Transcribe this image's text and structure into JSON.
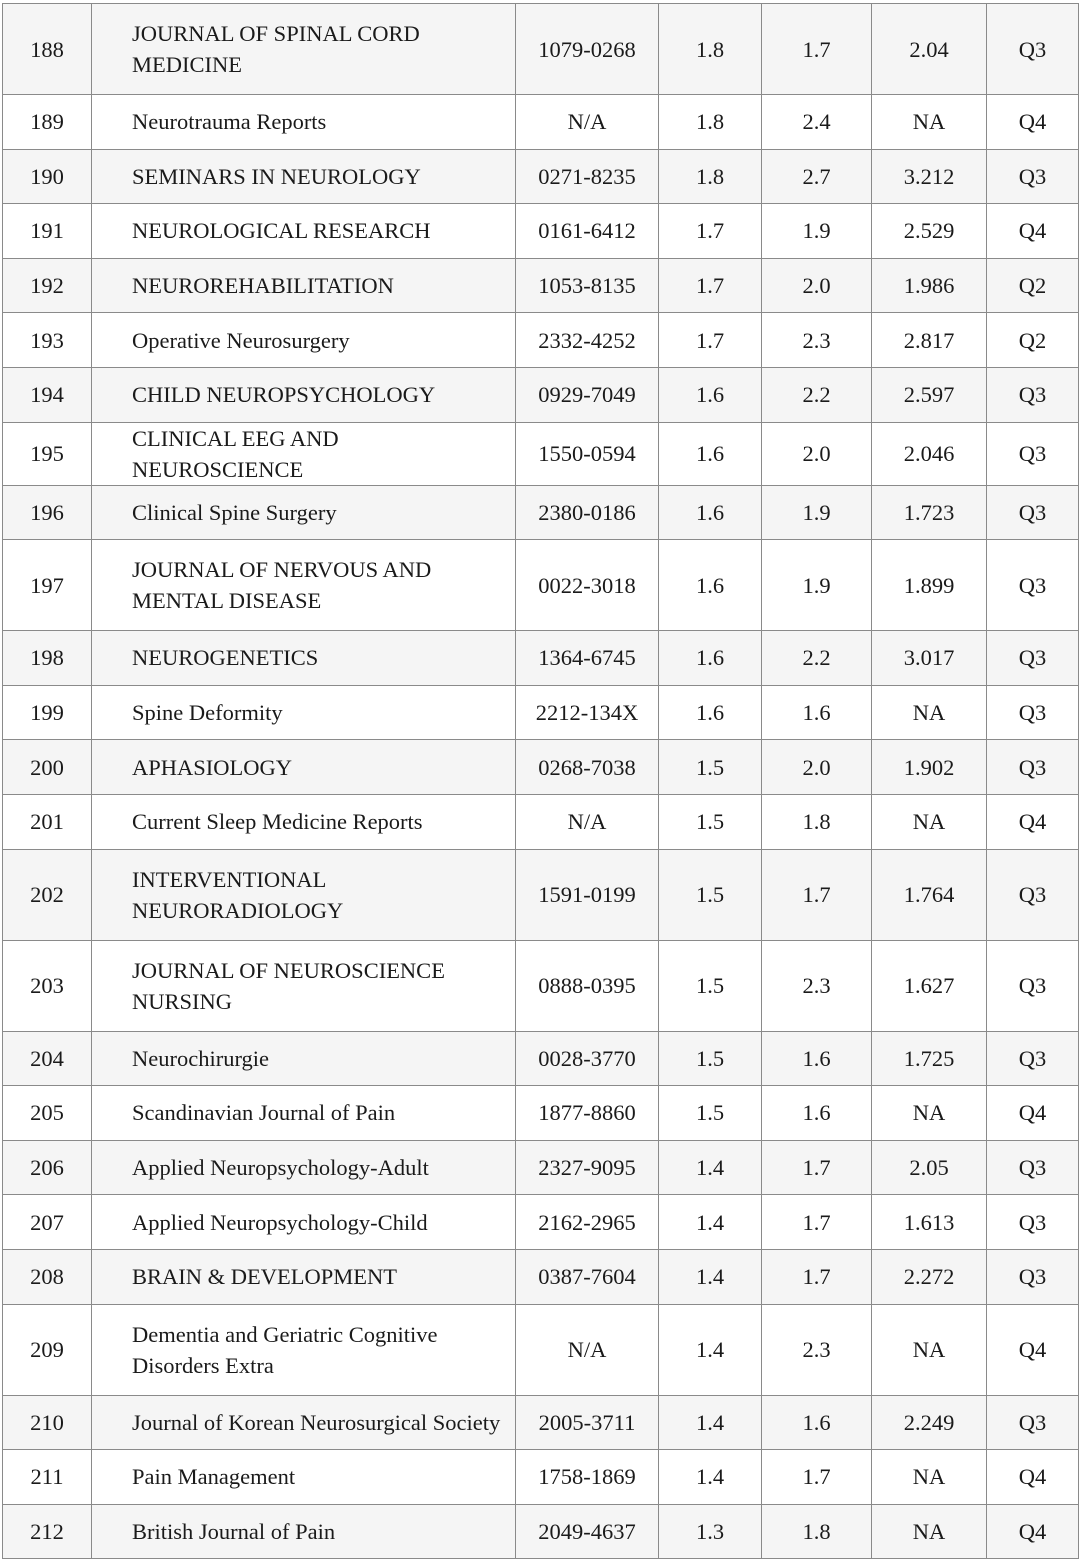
{
  "table": {
    "rows": [
      {
        "rank": "188",
        "journal": "JOURNAL OF SPINAL CORD MEDICINE",
        "issn": "1079-0268",
        "v1": "1.8",
        "v2": "1.7",
        "v3": "2.04",
        "quartile": "Q3",
        "tall": true
      },
      {
        "rank": "189",
        "journal": "Neurotrauma Reports",
        "issn": "N/A",
        "v1": "1.8",
        "v2": "2.4",
        "v3": "NA",
        "quartile": "Q4"
      },
      {
        "rank": "190",
        "journal": "SEMINARS IN NEUROLOGY",
        "issn": "0271-8235",
        "v1": "1.8",
        "v2": "2.7",
        "v3": "3.212",
        "quartile": "Q3"
      },
      {
        "rank": "191",
        "journal": "NEUROLOGICAL RESEARCH",
        "issn": "0161-6412",
        "v1": "1.7",
        "v2": "1.9",
        "v3": "2.529",
        "quartile": "Q4"
      },
      {
        "rank": "192",
        "journal": "NEUROREHABILITATION",
        "issn": "1053-8135",
        "v1": "1.7",
        "v2": "2.0",
        "v3": "1.986",
        "quartile": "Q2"
      },
      {
        "rank": "193",
        "journal": "Operative Neurosurgery",
        "issn": "2332-4252",
        "v1": "1.7",
        "v2": "2.3",
        "v3": "2.817",
        "quartile": "Q2"
      },
      {
        "rank": "194",
        "journal": "CHILD NEUROPSYCHOLOGY",
        "issn": "0929-7049",
        "v1": "1.6",
        "v2": "2.2",
        "v3": "2.597",
        "quartile": "Q3"
      },
      {
        "rank": "195",
        "journal": "CLINICAL EEG AND NEUROSCIENCE",
        "issn": "1550-0594",
        "v1": "1.6",
        "v2": "2.0",
        "v3": "2.046",
        "quartile": "Q3"
      },
      {
        "rank": "196",
        "journal": "Clinical Spine Surgery",
        "issn": "2380-0186",
        "v1": "1.6",
        "v2": "1.9",
        "v3": "1.723",
        "quartile": "Q3"
      },
      {
        "rank": "197",
        "journal": "JOURNAL OF NERVOUS AND MENTAL DISEASE",
        "issn": "0022-3018",
        "v1": "1.6",
        "v2": "1.9",
        "v3": "1.899",
        "quartile": "Q3",
        "tall": true
      },
      {
        "rank": "198",
        "journal": "NEUROGENETICS",
        "issn": "1364-6745",
        "v1": "1.6",
        "v2": "2.2",
        "v3": "3.017",
        "quartile": "Q3"
      },
      {
        "rank": "199",
        "journal": "Spine Deformity",
        "issn": "2212-134X",
        "v1": "1.6",
        "v2": "1.6",
        "v3": "NA",
        "quartile": "Q3"
      },
      {
        "rank": "200",
        "journal": "APHASIOLOGY",
        "issn": "0268-7038",
        "v1": "1.5",
        "v2": "2.0",
        "v3": "1.902",
        "quartile": "Q3"
      },
      {
        "rank": "201",
        "journal": "Current Sleep Medicine Reports",
        "issn": "N/A",
        "v1": "1.5",
        "v2": "1.8",
        "v3": "NA",
        "quartile": "Q4"
      },
      {
        "rank": "202",
        "journal": "INTERVENTIONAL NEURORADIOLOGY",
        "issn": "1591-0199",
        "v1": "1.5",
        "v2": "1.7",
        "v3": "1.764",
        "quartile": "Q3",
        "tall": true
      },
      {
        "rank": "203",
        "journal": "JOURNAL OF NEUROSCIENCE NURSING",
        "issn": "0888-0395",
        "v1": "1.5",
        "v2": "2.3",
        "v3": "1.627",
        "quartile": "Q3",
        "tall": true
      },
      {
        "rank": "204",
        "journal": "Neurochirurgie",
        "issn": "0028-3770",
        "v1": "1.5",
        "v2": "1.6",
        "v3": "1.725",
        "quartile": "Q3"
      },
      {
        "rank": "205",
        "journal": "Scandinavian Journal of Pain",
        "issn": "1877-8860",
        "v1": "1.5",
        "v2": "1.6",
        "v3": "NA",
        "quartile": "Q4"
      },
      {
        "rank": "206",
        "journal": "Applied Neuropsychology-Adult",
        "issn": "2327-9095",
        "v1": "1.4",
        "v2": "1.7",
        "v3": "2.05",
        "quartile": "Q3"
      },
      {
        "rank": "207",
        "journal": "Applied Neuropsychology-Child",
        "issn": "2162-2965",
        "v1": "1.4",
        "v2": "1.7",
        "v3": "1.613",
        "quartile": "Q3"
      },
      {
        "rank": "208",
        "journal": "BRAIN & DEVELOPMENT",
        "issn": "0387-7604",
        "v1": "1.4",
        "v2": "1.7",
        "v3": "2.272",
        "quartile": "Q3"
      },
      {
        "rank": "209",
        "journal": "Dementia and Geriatric Cognitive Disorders Extra",
        "issn": "N/A",
        "v1": "1.4",
        "v2": "2.3",
        "v3": "NA",
        "quartile": "Q4",
        "tall": true
      },
      {
        "rank": "210",
        "journal": "Journal of Korean Neurosurgical Society",
        "issn": "2005-3711",
        "v1": "1.4",
        "v2": "1.6",
        "v3": "2.249",
        "quartile": "Q3"
      },
      {
        "rank": "211",
        "journal": "Pain Management",
        "issn": "1758-1869",
        "v1": "1.4",
        "v2": "1.7",
        "v3": "NA",
        "quartile": "Q4"
      },
      {
        "rank": "212",
        "journal": "British Journal of Pain",
        "issn": "2049-4637",
        "v1": "1.3",
        "v2": "1.8",
        "v3": "NA",
        "quartile": "Q4"
      }
    ]
  },
  "colors": {
    "stripe": "#f5f5f5",
    "border": "#8a8a8a"
  }
}
